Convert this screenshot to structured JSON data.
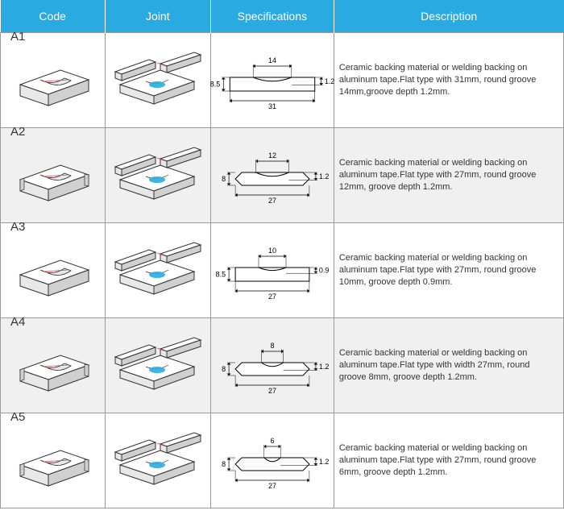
{
  "headers": {
    "code": "Code",
    "joint": "Joint",
    "spec": "Specifications",
    "desc": "Description"
  },
  "colors": {
    "header_bg": "#29abe2",
    "header_text": "#ffffff",
    "border": "#999999",
    "alt_row_bg": "#f0f0f0",
    "iso_face_light": "#ffffff",
    "iso_face_shadow": "#d0d0d0",
    "iso_face_mid": "#e8e8e8",
    "iso_stroke": "#333333",
    "groove_accent": "#d94545",
    "joint_highlight": "#29abe2",
    "spec_stroke": "#000000",
    "spec_text": "#000000"
  },
  "rows": [
    {
      "code": "A1",
      "desc": "Ceramic backing material or welding backing on aluminum tape.Flat type with 31mm, round groove 14mm,groove depth 1.2mm.",
      "spec": {
        "width": 31,
        "height": 8.5,
        "groove_width": 14,
        "groove_depth": 1.2,
        "chamfer": false
      },
      "alt": false
    },
    {
      "code": "A2",
      "desc": "Ceramic backing material or welding backing on aluminum tape.Flat type with 27mm, round groove 12mm, groove depth 1.2mm.",
      "spec": {
        "width": 27,
        "height": 8,
        "groove_width": 12,
        "groove_depth": 1.2,
        "chamfer": true
      },
      "alt": true
    },
    {
      "code": "A3",
      "desc": "Ceramic backing material or welding backing on aluminum tape.Flat type with 27mm, round groove 10mm, groove depth 0.9mm.",
      "spec": {
        "width": 27,
        "height": 8.5,
        "groove_width": 10,
        "groove_depth": 0.9,
        "chamfer": false
      },
      "alt": false
    },
    {
      "code": "A4",
      "desc": "Ceramic backing material or welding backing on aluminum tape.Flat type with width 27mm, round groove 8mm, groove depth 1.2mm.",
      "spec": {
        "width": 27,
        "height": 8,
        "groove_width": 8,
        "groove_depth": 1.2,
        "chamfer": true
      },
      "alt": true
    },
    {
      "code": "A5",
      "desc": "Ceramic backing material or welding backing on aluminum tape.Flat type with 27mm, round groove 6mm, groove depth 1.2mm.",
      "spec": {
        "width": 27,
        "height": 8,
        "groove_width": 6,
        "groove_depth": 1.2,
        "chamfer": true
      },
      "alt": false
    }
  ]
}
